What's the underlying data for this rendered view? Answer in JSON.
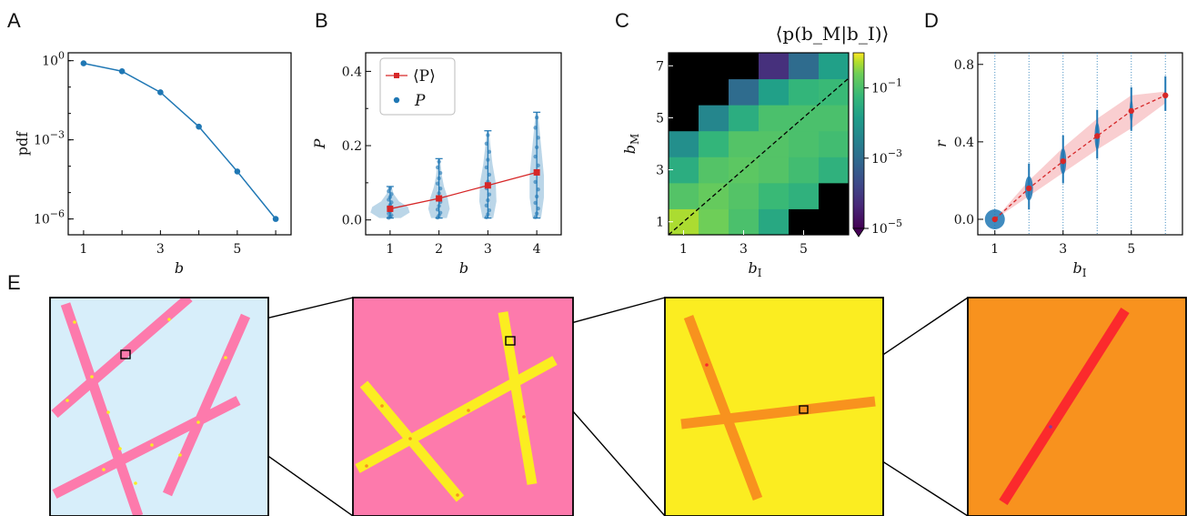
{
  "panels": {
    "A": "A",
    "B": "B",
    "C": "C",
    "D": "D",
    "E": "E"
  },
  "chart_data": [
    {
      "id": "A",
      "type": "line",
      "xlabel": "b",
      "ylabel": "pdf",
      "yscale": "log",
      "xticks": [
        "1",
        "3",
        "5"
      ],
      "yticks": [
        "10^0",
        "10^-3",
        "10^-6"
      ],
      "xlim": [
        0.6,
        6.4
      ],
      "ylim_log10": [
        -6.6,
        0.3
      ],
      "color": "#1f77b4",
      "x": [
        1,
        2,
        3,
        4,
        5,
        6
      ],
      "y_log10": [
        -0.1,
        -0.4,
        -1.2,
        -2.5,
        -4.2,
        -6.0
      ]
    },
    {
      "id": "B",
      "type": "violin",
      "xlabel": "b",
      "ylabel": "P",
      "xticks": [
        "1",
        "2",
        "3",
        "4"
      ],
      "yticks": [
        "0.0",
        "0.2",
        "0.4"
      ],
      "xlim": [
        0.5,
        4.5
      ],
      "ylim": [
        -0.04,
        0.45
      ],
      "legend": [
        "⟨P⟩",
        "P"
      ],
      "legend_position": "top-left",
      "mean_color": "#d62728",
      "violin_color": "#1f77b4",
      "categories": [
        1,
        2,
        3,
        4
      ],
      "means": [
        0.03,
        0.058,
        0.093,
        0.128
      ],
      "violins": [
        {
          "min": 0.005,
          "max": 0.09,
          "profile": [
            [
              0.005,
              0.3
            ],
            [
              0.02,
              0.55
            ],
            [
              0.035,
              0.5
            ],
            [
              0.05,
              0.25
            ],
            [
              0.07,
              0.1
            ],
            [
              0.09,
              0.04
            ]
          ]
        },
        {
          "min": 0.005,
          "max": 0.165,
          "profile": [
            [
              0.005,
              0.22
            ],
            [
              0.03,
              0.3
            ],
            [
              0.06,
              0.24
            ],
            [
              0.09,
              0.14
            ],
            [
              0.12,
              0.08
            ],
            [
              0.165,
              0.03
            ]
          ]
        },
        {
          "min": 0.005,
          "max": 0.24,
          "profile": [
            [
              0.005,
              0.15
            ],
            [
              0.05,
              0.24
            ],
            [
              0.1,
              0.22
            ],
            [
              0.15,
              0.13
            ],
            [
              0.2,
              0.07
            ],
            [
              0.24,
              0.03
            ]
          ]
        },
        {
          "min": 0.005,
          "max": 0.29,
          "profile": [
            [
              0.005,
              0.12
            ],
            [
              0.06,
              0.2
            ],
            [
              0.12,
              0.2
            ],
            [
              0.18,
              0.14
            ],
            [
              0.24,
              0.08
            ],
            [
              0.29,
              0.03
            ]
          ]
        }
      ]
    },
    {
      "id": "C",
      "type": "heatmap",
      "title": "⟨p(b_M|b_I)⟩",
      "xlabel": "b_I",
      "ylabel": "b_M",
      "xticks": [
        "1",
        "3",
        "5"
      ],
      "yticks": [
        "1",
        "3",
        "5",
        "7"
      ],
      "colorbar_ticks": [
        "10^-1",
        "10^-3",
        "10^-5"
      ],
      "colorbar_range_log10": [
        -5,
        0
      ],
      "colormap": "viridis",
      "x_values": [
        1,
        2,
        3,
        4,
        5,
        6
      ],
      "y_values": [
        1,
        2,
        3,
        4,
        5,
        6,
        7
      ],
      "log10_values": [
        [
          -0.3,
          -0.6,
          -1.0,
          -1.6,
          null,
          null
        ],
        [
          -0.9,
          -0.7,
          -0.9,
          -1.2,
          -1.4,
          null
        ],
        [
          -1.5,
          -0.9,
          -0.8,
          -0.9,
          -1.1,
          -1.4
        ],
        [
          -2.2,
          -1.3,
          -0.9,
          -0.9,
          -1.0,
          -1.1
        ],
        [
          null,
          -2.4,
          -1.5,
          -1.0,
          -1.0,
          -1.0
        ],
        [
          null,
          null,
          -3.0,
          -1.8,
          -1.3,
          -1.2
        ],
        [
          null,
          null,
          null,
          -4.2,
          -3.0,
          -1.8
        ]
      ]
    },
    {
      "id": "D",
      "type": "scatter",
      "xlabel": "b_I",
      "ylabel": "r",
      "xticks": [
        "1",
        "3",
        "5"
      ],
      "yticks": [
        "0.0",
        "0.4",
        "0.8"
      ],
      "xlim": [
        0.5,
        6.5
      ],
      "ylim": [
        -0.08,
        0.86
      ],
      "mean_color": "#d62728",
      "band_color": "#f4a6aa",
      "point_color": "#1f77b4",
      "x": [
        1,
        2,
        3,
        4,
        5,
        6
      ],
      "mean_r": [
        0.0,
        0.16,
        0.3,
        0.43,
        0.56,
        0.64
      ],
      "band_low": [
        0.0,
        0.12,
        0.24,
        0.36,
        0.47,
        0.6
      ],
      "band_high": [
        0.0,
        0.2,
        0.37,
        0.52,
        0.64,
        0.66
      ],
      "cluster_sizes": [
        22,
        14,
        11,
        9,
        6,
        3
      ]
    }
  ],
  "insets": {
    "background_colors": [
      "#d7eefa",
      "#fd7aac",
      "#fbed21",
      "#f8921e"
    ],
    "rod_colors": [
      "#fd7aac",
      "#fbed21",
      "#f8921e",
      "#fb2a2c"
    ],
    "dot_colors": [
      "#fbed21",
      "#f8921e",
      "#fb2a2c",
      "#7b3fa0"
    ]
  }
}
